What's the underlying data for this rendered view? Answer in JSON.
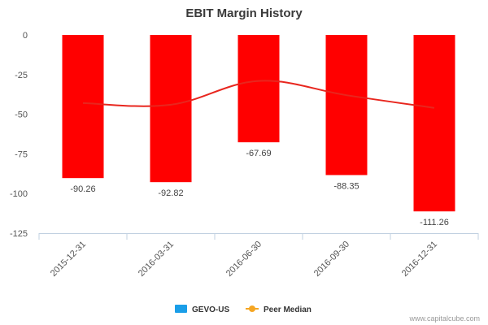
{
  "chart_data": {
    "type": "bar",
    "title": "EBIT Margin History",
    "categories": [
      "2015-12-31",
      "2016-03-31",
      "2016-06-30",
      "2016-09-30",
      "2016-12-31"
    ],
    "series": [
      {
        "name": "GEVO-US",
        "kind": "bar",
        "values": [
          -90.26,
          -92.82,
          -67.69,
          -88.35,
          -111.26
        ],
        "value_labels": [
          "-90.26",
          "-92.82",
          "-67.69",
          "-88.35",
          "-111.26"
        ],
        "bar_color": "#ff0000",
        "legend_color": "#1a9ee8"
      },
      {
        "name": "Peer Median",
        "kind": "line",
        "values": [
          -43,
          -44,
          -29,
          -38,
          -46
        ],
        "color": "#e8261e",
        "legend_color": "#f5a623"
      }
    ],
    "ylim": [
      -125,
      0
    ],
    "yticks": [
      0,
      -25,
      -50,
      -75,
      -100,
      -125
    ],
    "ytick_labels": [
      "0",
      "-25",
      "-50",
      "-75",
      "-100",
      "-125"
    ],
    "xlabel": "",
    "ylabel": "",
    "grid": false,
    "legend_position": "bottom-center"
  },
  "credit": "www.capitalcube.com"
}
